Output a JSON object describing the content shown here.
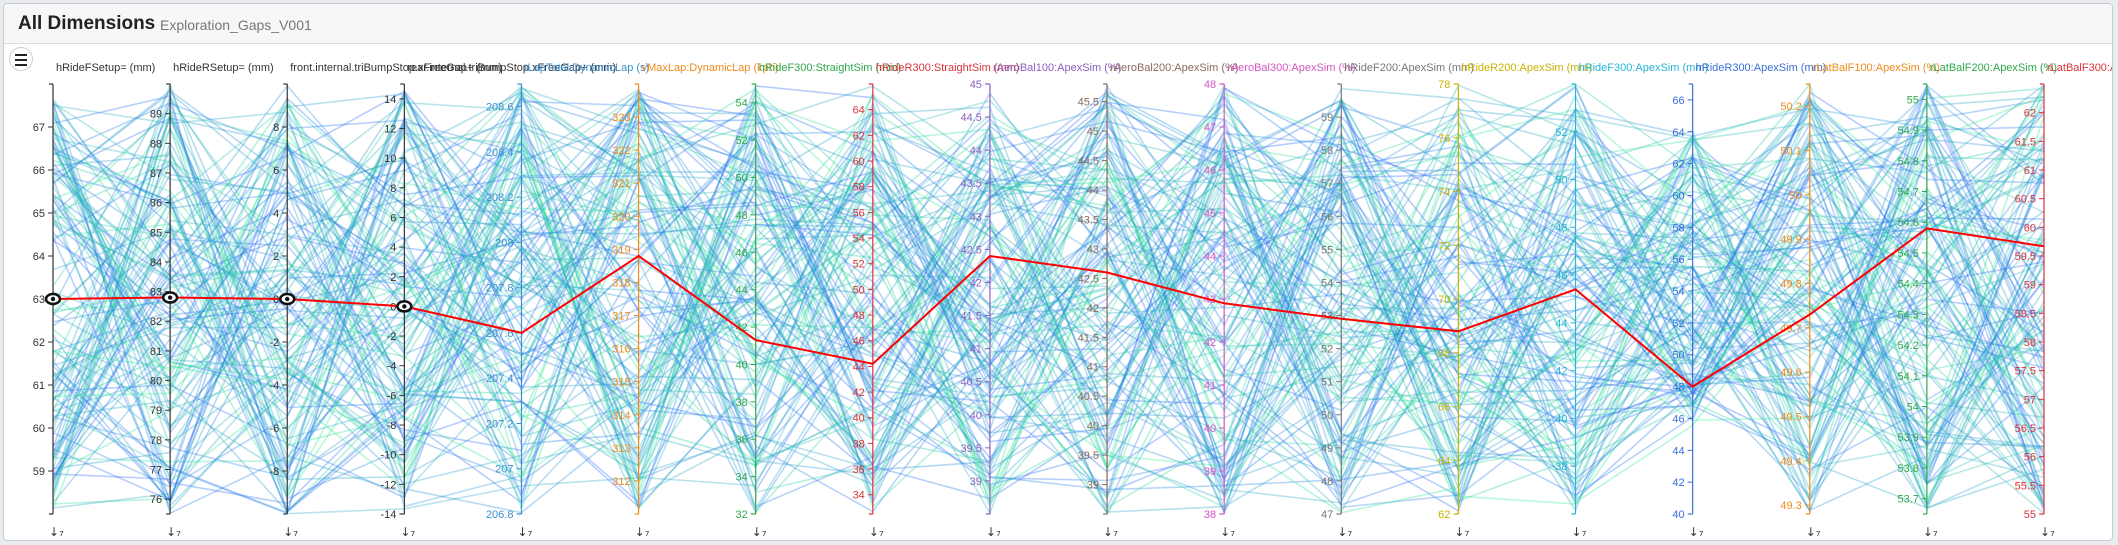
{
  "header": {
    "title": "All Dimensions",
    "subtitle": "Exploration_Gaps_V001"
  },
  "menu": {
    "icon": "hamburger-menu-icon"
  },
  "chart_data": {
    "type": "parallel-coordinates",
    "highlight_color": "#ff0000",
    "line_color_range": [
      "#22ee88",
      "#1f5fff"
    ],
    "axes": [
      {
        "name": "hRideFSetup= (mm)",
        "color": "#333333",
        "min": 58,
        "max": 68,
        "ticks": [
          59,
          60,
          61,
          62,
          63,
          64,
          65,
          66,
          67
        ]
      },
      {
        "name": "hRideRSetup= (mm)",
        "color": "#333333",
        "min": 75.5,
        "max": 90,
        "ticks": [
          76,
          77,
          78,
          79,
          80,
          81,
          82,
          83,
          84,
          85,
          86,
          87,
          88,
          89
        ]
      },
      {
        "name": "front.internal.triBumpStop.xFreeGap+ (mm)",
        "color": "#333333",
        "min": -10,
        "max": 10,
        "ticks": [
          -8,
          -6,
          -4,
          -2,
          0,
          2,
          4,
          6,
          8
        ]
      },
      {
        "name": "rear.internal.triBumpStop.xFreeGap+ (mm)",
        "color": "#333333",
        "min": -14,
        "max": 15,
        "ticks": [
          -14,
          -12,
          -10,
          -8,
          -6,
          -4,
          -2,
          0,
          2,
          4,
          6,
          8,
          10,
          12,
          14
        ]
      },
      {
        "name": "tLapTotal:DynamicLap (s)",
        "color": "#3a8fd0",
        "min": 206.8,
        "max": 208.7,
        "ticks": [
          206.8,
          207.0,
          207.2,
          207.4,
          207.6,
          207.8,
          208.0,
          208.2,
          208.4,
          208.6
        ]
      },
      {
        "name": "vMaxLap:DynamicLap (kph)",
        "color": "#f08a1c",
        "min": 311,
        "max": 324,
        "ticks": [
          312,
          313,
          314,
          315,
          316,
          317,
          318,
          319,
          320,
          321,
          322,
          323
        ]
      },
      {
        "name": "hRideF300:StraightSim (mm)",
        "color": "#2fa84a",
        "min": 32,
        "max": 55,
        "ticks": [
          32,
          34,
          36,
          38,
          40,
          42,
          44,
          46,
          48,
          50,
          52,
          54
        ]
      },
      {
        "name": "hRideR300:StraightSim (mm)",
        "color": "#d9343c",
        "min": 32.5,
        "max": 66,
        "ticks": [
          34,
          36,
          38,
          40,
          42,
          44,
          46,
          48,
          50,
          52,
          54,
          56,
          58,
          60,
          62,
          64
        ]
      },
      {
        "name": "rAeroBal100:ApexSim (%)",
        "color": "#8a5fc0",
        "min": 38.5,
        "max": 45,
        "ticks": [
          39.0,
          39.5,
          40.0,
          40.5,
          41.0,
          41.5,
          42.0,
          42.5,
          43.0,
          43.5,
          44.0,
          44.5,
          45.0
        ]
      },
      {
        "name": "rAeroBal200:ApexSim (%)",
        "color": "#8a6a5a",
        "min": 38.5,
        "max": 45.8,
        "ticks": [
          39.0,
          39.5,
          40.0,
          40.5,
          41.0,
          41.5,
          42.0,
          42.5,
          43.0,
          43.5,
          44.0,
          44.5,
          45.0,
          45.5
        ]
      },
      {
        "name": "rAeroBal300:ApexSim (%)",
        "color": "#d455c0",
        "min": 38,
        "max": 48,
        "ticks": [
          38,
          39,
          40,
          41,
          42,
          43,
          44,
          45,
          46,
          47,
          48
        ]
      },
      {
        "name": "hRideF200:ApexSim (mm)",
        "color": "#777777",
        "min": 47,
        "max": 60,
        "ticks": [
          47,
          48,
          49,
          50,
          51,
          52,
          53,
          54,
          55,
          56,
          57,
          58,
          59
        ]
      },
      {
        "name": "hRideR200:ApexSim (mm)",
        "color": "#c9b200",
        "min": 62,
        "max": 78,
        "ticks": [
          62,
          64,
          66,
          68,
          70,
          72,
          74,
          76,
          78
        ]
      },
      {
        "name": "hRideF300:ApexSim (mm)",
        "color": "#27b6d6",
        "min": 36,
        "max": 54,
        "ticks": [
          38,
          40,
          42,
          44,
          46,
          48,
          50,
          52
        ]
      },
      {
        "name": "hRideR300:ApexSim (mm)",
        "color": "#3a6fd8",
        "min": 40,
        "max": 67,
        "ticks": [
          40,
          42,
          44,
          46,
          48,
          50,
          52,
          54,
          56,
          58,
          60,
          62,
          64,
          66
        ]
      },
      {
        "name": "rLatBalF100:ApexSim (%)",
        "color": "#f08a1c",
        "min": 49.28,
        "max": 50.25,
        "ticks": [
          49.3,
          49.4,
          49.5,
          49.6,
          49.7,
          49.8,
          49.9,
          50.0,
          50.1,
          50.2
        ]
      },
      {
        "name": "rLatBalF200:ApexSim (%)",
        "color": "#2fa84a",
        "min": 53.65,
        "max": 55.05,
        "ticks": [
          53.7,
          53.8,
          53.9,
          54.0,
          54.1,
          54.2,
          54.3,
          54.4,
          54.5,
          54.6,
          54.7,
          54.8,
          54.9,
          55.0
        ]
      },
      {
        "name": "rLatBalF300:ApexSim (%)",
        "color": "#d9343c",
        "min": 55,
        "max": 62.5,
        "ticks": [
          55.0,
          55.5,
          56.0,
          56.5,
          57.0,
          57.5,
          58.0,
          58.5,
          59.0,
          59.5,
          60.0,
          60.5,
          61.0,
          61.5,
          62.0
        ]
      }
    ],
    "highlighted_row": [
      63.0,
      82.8,
      0.0,
      0.0,
      207.6,
      318.8,
      41.3,
      44.2,
      42.4,
      42.6,
      42.9,
      52.9,
      68.8,
      45.4,
      48.0,
      49.73,
      54.58,
      59.67
    ],
    "background_row_count": 140
  }
}
